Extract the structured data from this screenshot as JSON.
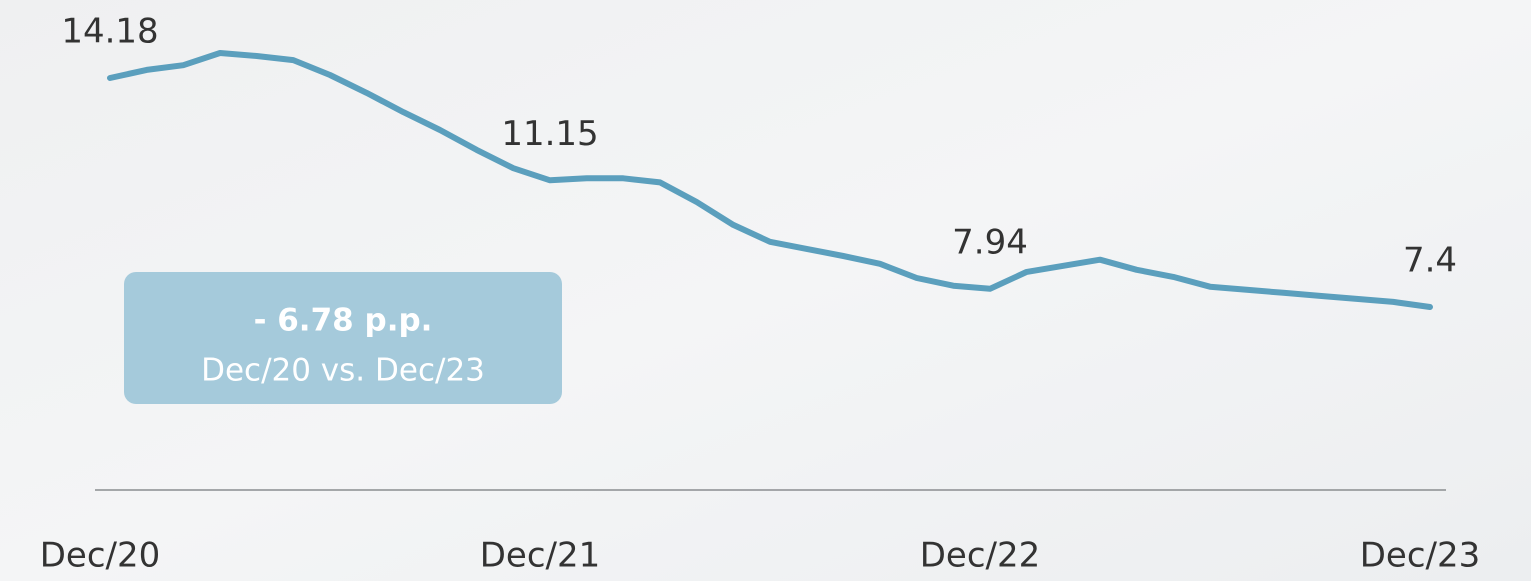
{
  "chart_data": {
    "type": "line",
    "categories": [
      "Dec/20",
      null,
      null,
      null,
      null,
      null,
      null,
      null,
      null,
      null,
      null,
      null,
      "Dec/21",
      null,
      null,
      null,
      null,
      null,
      null,
      null,
      null,
      null,
      null,
      null,
      "Dec/22",
      null,
      null,
      null,
      null,
      null,
      null,
      null,
      null,
      null,
      null,
      null,
      "Dec/23"
    ],
    "series": [
      {
        "color": "#5b9fbd",
        "values": [
          14.18,
          14.42,
          14.56,
          14.92,
          14.83,
          14.71,
          14.27,
          13.74,
          13.17,
          12.64,
          12.05,
          11.51,
          11.15,
          11.21,
          11.21,
          11.09,
          10.51,
          9.83,
          9.33,
          9.12,
          8.91,
          8.68,
          8.26,
          8.03,
          7.94,
          8.44,
          8.62,
          8.8,
          8.5,
          8.29,
          8.0,
          7.91,
          7.82,
          7.73,
          7.64,
          7.55,
          7.4
        ]
      }
    ],
    "annotation": {
      "text": "- 6.78 p.p.",
      "subtext": "Dec/20 vs. Dec/23"
    }
  }
}
